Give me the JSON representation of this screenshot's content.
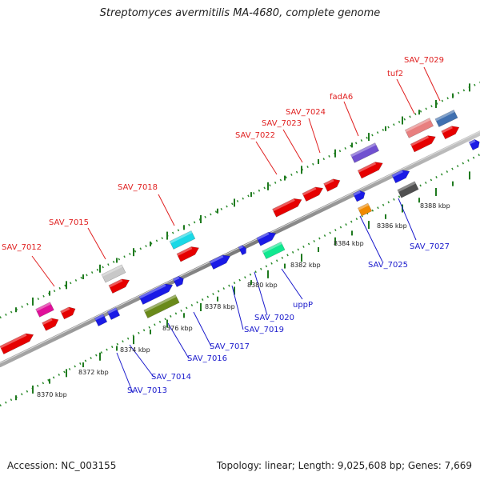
{
  "title": "Streptomyces avermitilis MA-4680, complete genome",
  "footer": {
    "accession": "Accession: NC_003155",
    "topology": "Topology: linear; Length: 9,025,608 bp; Genes: 7,669"
  },
  "colors": {
    "backbone": "#888888",
    "top_label": "#e02020",
    "bottom_label": "#1a1acc",
    "tick": "#2a8a2a",
    "forward_gene": "#e60000",
    "reverse_gene": "#1a1ae6"
  },
  "kbp_labels": [
    "8370 kbp",
    "8372 kbp",
    "8374 kbp",
    "8376 kbp",
    "8378 kbp",
    "8380 kbp",
    "8382 kbp",
    "8384 kbp",
    "8386 kbp",
    "8388 kbp"
  ],
  "top_labels": [
    "SAV_7012",
    "SAV_7015",
    "SAV_7018",
    "SAV_7022",
    "SAV_7023",
    "SAV_7024",
    "fadA6",
    "tuf2",
    "SAV_7029"
  ],
  "bottom_labels": [
    "SAV_7013",
    "SAV_7014",
    "SAV_7016",
    "SAV_7017",
    "SAV_7019",
    "SAV_7020",
    "uppP",
    "SAV_7025",
    "SAV_7027"
  ]
}
